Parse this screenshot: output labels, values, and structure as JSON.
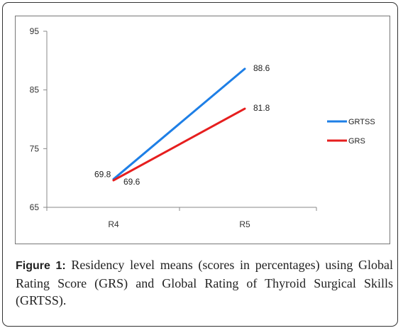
{
  "caption": {
    "label": "Figure 1:",
    "text": " Residency level means (scores in percentages) using Global Rating Score (GRS) and Global Rating of Thyroid Surgical Skills (GRTSS)."
  },
  "chart_data": {
    "type": "line",
    "categories": [
      "R4",
      "R5"
    ],
    "series": [
      {
        "name": "GRTSS",
        "values": [
          69.8,
          88.6
        ],
        "color": "#1e7fe6"
      },
      {
        "name": "GRS",
        "values": [
          69.6,
          81.8
        ],
        "color": "#e61e1e"
      }
    ],
    "ylim": [
      65,
      95
    ],
    "yticks": [
      "65",
      "75",
      "85",
      "95"
    ],
    "grid": false,
    "legend": "right",
    "data_labels": [
      "69.8",
      "88.6",
      "69.6",
      "81.8"
    ]
  }
}
